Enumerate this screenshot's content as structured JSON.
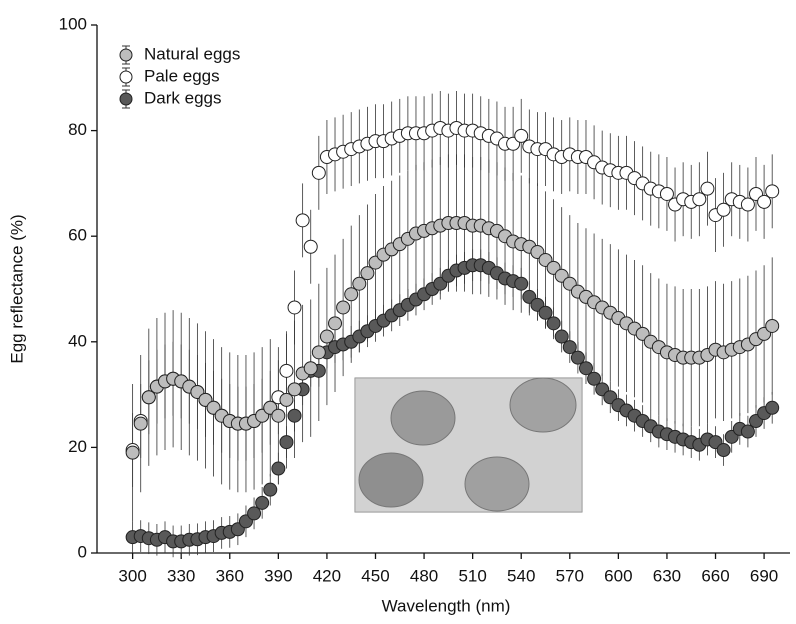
{
  "chart_data": {
    "type": "scatter",
    "x_label": "Wavelength (nm)",
    "y_label": "Egg reflectance (%)",
    "x": [
      300,
      305,
      310,
      315,
      320,
      325,
      330,
      335,
      340,
      345,
      350,
      355,
      360,
      365,
      370,
      375,
      380,
      385,
      390,
      395,
      400,
      405,
      410,
      415,
      420,
      425,
      430,
      435,
      440,
      445,
      450,
      455,
      460,
      465,
      470,
      475,
      480,
      485,
      490,
      495,
      500,
      505,
      510,
      515,
      520,
      525,
      530,
      535,
      540,
      545,
      550,
      555,
      560,
      565,
      570,
      575,
      580,
      585,
      590,
      595,
      600,
      605,
      610,
      615,
      620,
      625,
      630,
      635,
      640,
      645,
      650,
      655,
      660,
      665,
      670,
      675,
      680,
      685,
      690,
      695
    ],
    "series": [
      {
        "name": "Natural eggs",
        "color": "#bdbdbd",
        "error": 13,
        "values": [
          19,
          24.5,
          29.5,
          31.5,
          32.5,
          33,
          32.5,
          31.5,
          30.5,
          29,
          27.5,
          26,
          25,
          24.5,
          24.5,
          25,
          26,
          27.5,
          26,
          29,
          31,
          34,
          35,
          38,
          41,
          43.5,
          46.5,
          49,
          51,
          53,
          55,
          56.5,
          57.5,
          58.5,
          59.5,
          60.5,
          61,
          61.5,
          62,
          62.5,
          62.5,
          62.5,
          62,
          62,
          61.5,
          61,
          60,
          59,
          58.5,
          58,
          57,
          55.5,
          54,
          52.5,
          51,
          49.5,
          48.5,
          47.5,
          46.5,
          45.5,
          44.5,
          43.5,
          42.5,
          41.5,
          40,
          39,
          38,
          37.5,
          37,
          37,
          37,
          37.5,
          38.5,
          38,
          38.5,
          39,
          39.5,
          40.5,
          41.5,
          43
        ]
      },
      {
        "name": "Pale eggs",
        "color": "#ffffff",
        "error": 7,
        "values": [
          19.5,
          25,
          29.5,
          31.5,
          32.5,
          33,
          32.5,
          31.5,
          30.5,
          29,
          27.5,
          26,
          25,
          24.5,
          24.5,
          25,
          26,
          27.5,
          29.5,
          34.5,
          46.5,
          63,
          58,
          72,
          75,
          75.5,
          76,
          76.5,
          77,
          77.5,
          78,
          78,
          78.5,
          79,
          79.5,
          79.5,
          79.5,
          80,
          80.5,
          80,
          80.5,
          80,
          80,
          79.5,
          79,
          78.5,
          77.5,
          77.5,
          79,
          77,
          76.5,
          76.5,
          75.5,
          75,
          75.5,
          75,
          75,
          74,
          73,
          72.5,
          72,
          72,
          71,
          70,
          69,
          68.5,
          68,
          66,
          67,
          66.5,
          67,
          69,
          64,
          65,
          67,
          66.5,
          66,
          68,
          66.5,
          68.5
        ]
      },
      {
        "name": "Dark eggs",
        "color": "#595959",
        "error": 3,
        "values": [
          3,
          3.2,
          2.8,
          2.5,
          3,
          2.2,
          2.2,
          2.5,
          2.6,
          3,
          3.2,
          3.8,
          4,
          4.5,
          6,
          7.5,
          9.5,
          12,
          16,
          21,
          26,
          31,
          34.5,
          34.5,
          38,
          39,
          39.5,
          40,
          41,
          42,
          43,
          44,
          45,
          46,
          47,
          48,
          49,
          50,
          51,
          52.5,
          53.5,
          54,
          54.5,
          54.5,
          54,
          53,
          52,
          51.5,
          51,
          48.5,
          47,
          45.5,
          43.5,
          41,
          39,
          37,
          35,
          33,
          31,
          29.5,
          28,
          27,
          26,
          25,
          24,
          23,
          22.5,
          22,
          21.5,
          21,
          20.5,
          21.5,
          21,
          19.5,
          22,
          23.5,
          23,
          25,
          26.5,
          27.5
        ]
      }
    ],
    "xlim": [
      278,
      706
    ],
    "ylim": [
      0,
      100
    ],
    "xticks": [
      300,
      330,
      360,
      390,
      420,
      450,
      480,
      510,
      540,
      570,
      600,
      630,
      660,
      690
    ],
    "yticks": [
      0,
      20,
      40,
      60,
      80,
      100
    ],
    "legend": "upper left"
  }
}
